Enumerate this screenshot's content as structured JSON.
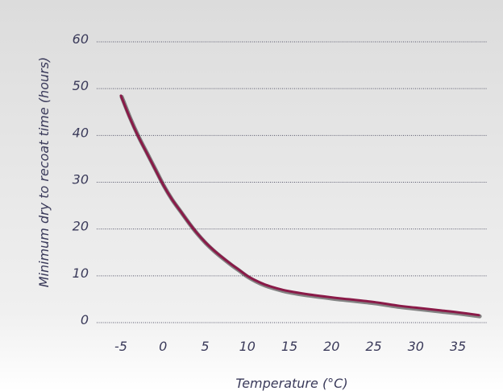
{
  "chart_data": {
    "type": "line",
    "title": "",
    "xlabel": "Temperature (°C)",
    "ylabel": "Minimum dry to recoat time (hours)",
    "xlim": [
      -5,
      38
    ],
    "ylim": [
      0,
      60
    ],
    "x_ticks": [
      "-5",
      "0",
      "5",
      "10",
      "15",
      "20",
      "25",
      "30",
      "35"
    ],
    "y_ticks": [
      "0",
      "10",
      "20",
      "30",
      "40",
      "50",
      "60"
    ],
    "grid": "horizontal-dotted",
    "legend": "none",
    "series": [
      {
        "x": [
          -5,
          -4,
          -3,
          -2,
          -1,
          0,
          1,
          2,
          3,
          4,
          5,
          6,
          7,
          8,
          9,
          10,
          11,
          12,
          13,
          14,
          15,
          17,
          20,
          22,
          25,
          28,
          30,
          33,
          35,
          37.5
        ],
        "y": [
          48.5,
          44,
          40,
          36.5,
          33,
          29.5,
          26.5,
          24,
          21.5,
          19.2,
          17.2,
          15.5,
          14,
          12.6,
          11.3,
          10,
          9,
          8.2,
          7.6,
          7.1,
          6.7,
          6.1,
          5.4,
          5.0,
          4.4,
          3.6,
          3.2,
          2.6,
          2.2,
          1.6
        ]
      }
    ],
    "colors": {
      "line": "#8a1a48",
      "line_shadow": "#2a2a2a",
      "grid": "#55556a",
      "text": "#3a3a5a",
      "background_top": "#dcdcdc",
      "background_bottom": "#ffffff"
    }
  }
}
